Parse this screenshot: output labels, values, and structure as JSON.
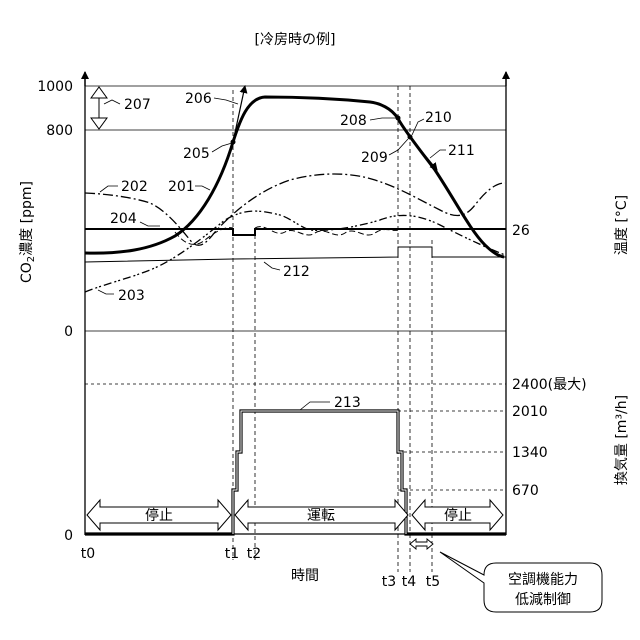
{
  "title": "[冷房時の例]",
  "y_axis_left": {
    "label_prefix": "CO",
    "label_sub": "2",
    "label_suffix": "濃度 [ppm]",
    "ticks_upper": [
      "1000",
      "800",
      "0"
    ],
    "tick_lower": "0"
  },
  "y_axis_right_temp": {
    "label": "温度 [°C]",
    "tick": "26"
  },
  "y_axis_right_flow": {
    "label": "換気量 [m³/h]",
    "ticks": [
      "2400(最大)",
      "2010",
      "1340",
      "670"
    ]
  },
  "x_axis": {
    "label": "時間",
    "ticks": [
      "t0",
      "t1",
      "t2",
      "t3",
      "t4",
      "t5"
    ]
  },
  "ref_numbers": {
    "r201": "201",
    "r202": "202",
    "r203": "203",
    "r204": "204",
    "r205": "205",
    "r206": "206",
    "r207": "207",
    "r208": "208",
    "r209": "209",
    "r210": "210",
    "r211": "211",
    "r212": "212",
    "r213": "213"
  },
  "states": {
    "stop1": "停止",
    "run": "運転",
    "stop2": "停止"
  },
  "callout": {
    "line1": "空調機能力",
    "line2": "低減制御"
  }
}
